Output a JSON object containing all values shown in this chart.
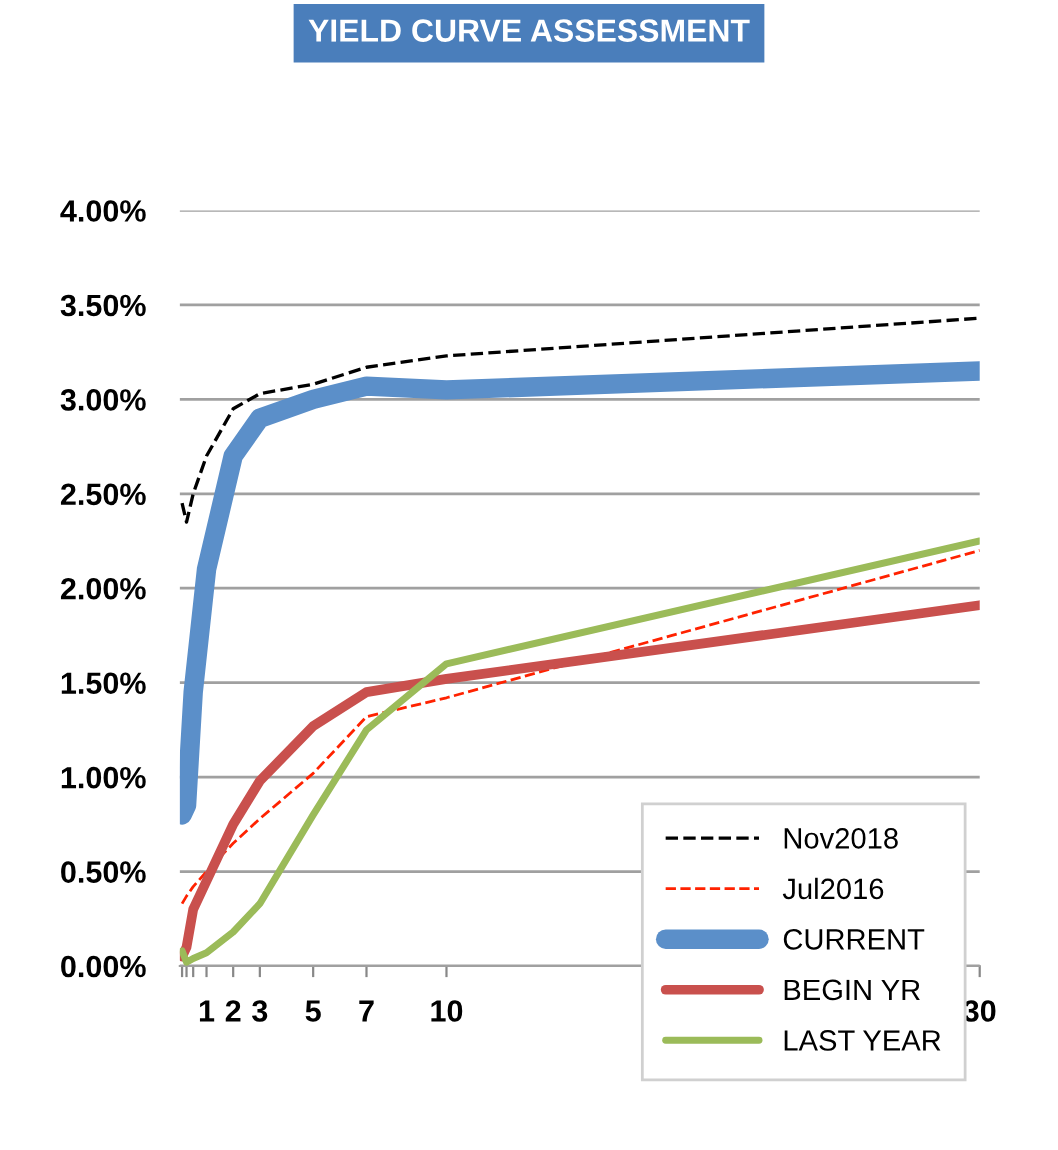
{
  "chart_data": {
    "type": "line",
    "title": "YIELD CURVE ASSESSMENT",
    "x": [
      0.083,
      0.25,
      0.5,
      1,
      2,
      3,
      5,
      7,
      10,
      30
    ],
    "series": [
      {
        "name": "Nov2018",
        "color": "#000000",
        "line_style": "dashed",
        "values": [
          2.45,
          2.35,
          2.5,
          2.7,
          2.95,
          3.03,
          3.08,
          3.17,
          3.23,
          3.43
        ]
      },
      {
        "name": "Jul2016",
        "color": "#ff2200",
        "line_style": "dashed",
        "values": [
          0.33,
          0.37,
          0.42,
          0.5,
          0.65,
          0.78,
          1.02,
          1.32,
          1.42,
          2.2
        ]
      },
      {
        "name": "CURRENT",
        "color": "#5b8fc9",
        "line_style": "solid",
        "values": [
          0.8,
          0.85,
          1.45,
          2.1,
          2.7,
          2.9,
          3.0,
          3.07,
          3.05,
          3.15
        ]
      },
      {
        "name": "BEGIN YR",
        "color": "#c9504d",
        "line_style": "solid",
        "values": [
          0.05,
          0.1,
          0.3,
          0.45,
          0.75,
          0.98,
          1.27,
          1.45,
          1.52,
          1.91
        ]
      },
      {
        "name": "LAST YEAR",
        "color": "#9bbb59",
        "line_style": "solid",
        "values": [
          0.08,
          0.02,
          0.04,
          0.07,
          0.18,
          0.33,
          0.8,
          1.25,
          1.6,
          2.25
        ]
      }
    ],
    "xlim": [
      0,
      30
    ],
    "xticks": [
      {
        "value": 0.083,
        "label": null
      },
      {
        "value": 0.25,
        "label": null
      },
      {
        "value": 0.5,
        "label": null
      },
      1,
      2,
      3,
      5,
      7,
      10,
      30
    ],
    "ylim": [
      0,
      4
    ],
    "yticks": [
      {
        "value": 0,
        "label": "0.00%"
      },
      {
        "value": 0.5,
        "label": "0.50%"
      },
      {
        "value": 1,
        "label": "1.00%"
      },
      {
        "value": 1.5,
        "label": "1.50%"
      },
      {
        "value": 2,
        "label": "2.00%"
      },
      {
        "value": 2.5,
        "label": "2.50%"
      },
      {
        "value": 3,
        "label": "3.00%"
      },
      {
        "value": 3.5,
        "label": "3.50%"
      },
      {
        "value": 4,
        "label": "4.00%"
      }
    ],
    "grid": "y",
    "legend": "bottom right",
    "marker": "none"
  }
}
